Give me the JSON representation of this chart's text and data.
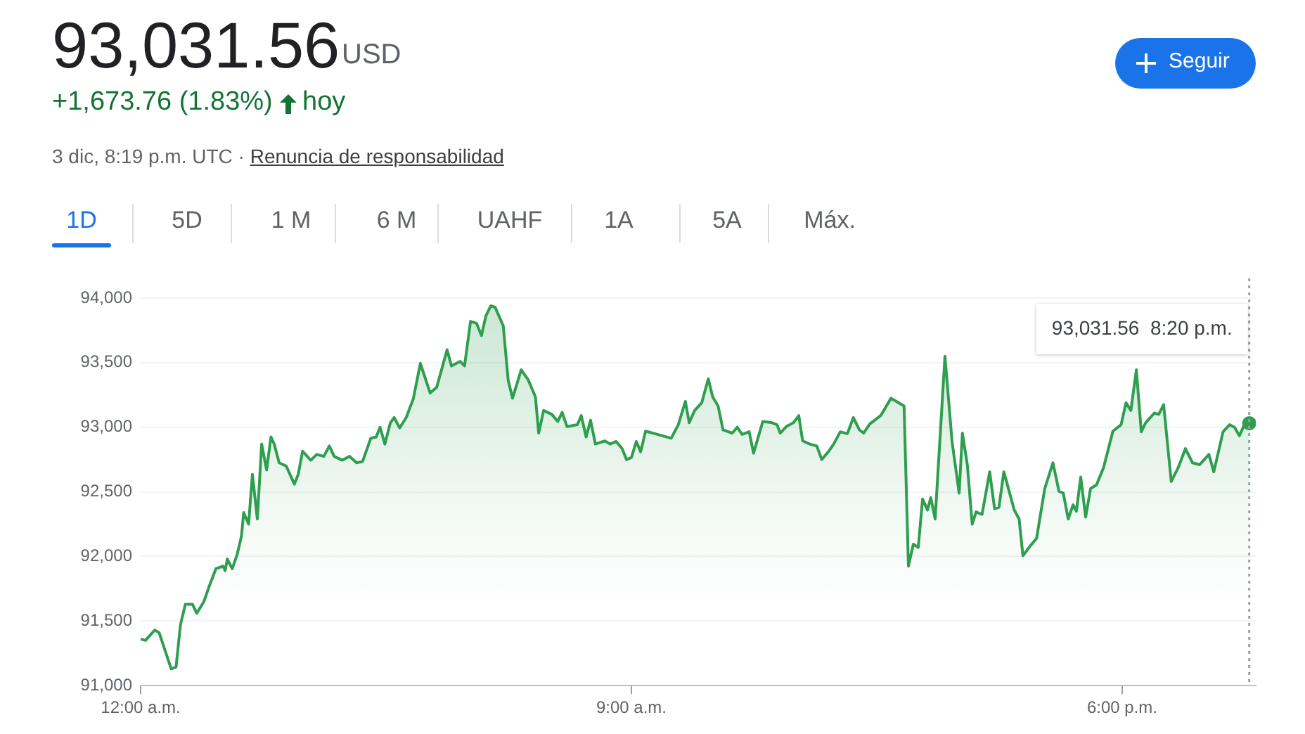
{
  "chart_data": {
    "type": "area",
    "title": "93,031.56",
    "color": "#2e9e4f",
    "annotations": [
      "USD",
      "+1,673.76 (1.83%)",
      "hoy",
      "3 dic, 8:19 p.m. UTC · ",
      "Renuncia de responsabilidad",
      "Seguir",
      "1D",
      "5D",
      "1 M",
      "6 M",
      "UAHF",
      "1A",
      "5A",
      "Máx.",
      "93,031.56  8:20 p.m."
    ],
    "x": [
      0,
      0.09,
      0.26,
      0.34,
      0.56,
      0.65,
      0.73,
      0.82,
      0.95,
      1.03,
      1.16,
      1.25,
      1.38,
      1.51,
      1.55,
      1.59,
      1.68,
      1.77,
      1.85,
      1.89,
      1.98,
      2.05,
      2.14,
      2.22,
      2.31,
      2.39,
      2.45,
      2.54,
      2.67,
      2.82,
      2.89,
      2.97,
      3.12,
      3.23,
      3.36,
      3.46,
      3.55,
      3.7,
      3.83,
      3.96,
      4.07,
      4.22,
      4.32,
      4.39,
      4.48,
      4.58,
      4.65,
      4.75,
      4.87,
      5,
      5.13,
      5.31,
      5.43,
      5.62,
      5.7,
      5.86,
      5.94,
      6.05,
      6.16,
      6.25,
      6.33,
      6.42,
      6.5,
      6.65,
      6.74,
      6.82,
      6.98,
      7.11,
      7.24,
      7.3,
      7.39,
      7.54,
      7.65,
      7.73,
      7.82,
      8.01,
      8.08,
      8.17,
      8.25,
      8.34,
      8.51,
      8.61,
      8.72,
      8.83,
      8.91,
      9,
      9.09,
      9.17,
      9.26,
      9.48,
      9.73,
      9.86,
      9.99,
      10.06,
      10.16,
      10.29,
      10.41,
      10.49,
      10.59,
      10.68,
      10.85,
      10.94,
      11.03,
      11.16,
      11.24,
      11.41,
      11.58,
      11.67,
      11.73,
      11.84,
      11.97,
      12.07,
      12.14,
      12.27,
      12.4,
      12.49,
      12.62,
      12.71,
      12.83,
      12.96,
      13.07,
      13.18,
      13.26,
      13.37,
      13.57,
      13.65,
      13.76,
      14,
      14.08,
      14.17,
      14.26,
      14.34,
      14.43,
      14.49,
      14.57,
      14.75,
      14.88,
      15.01,
      15.07,
      15.16,
      15.25,
      15.32,
      15.43,
      15.57,
      15.66,
      15.74,
      15.83,
      16.02,
      16.11,
      16.18,
      16.32,
      16.43,
      16.58,
      16.73,
      16.84,
      16.92,
      17.01,
      17.1,
      17.16,
      17.24,
      17.33,
      17.42,
      17.53,
      17.66,
      17.83,
      17.98,
      18.07,
      18.16,
      18.26,
      18.35,
      18.43,
      18.59,
      18.67,
      18.76,
      18.9,
      19.03,
      19.16,
      19.29,
      19.42,
      19.59,
      19.68,
      19.85,
      19.97,
      20.06,
      20.15,
      20.24,
      20.33
    ],
    "values": [
      91360,
      91350,
      91430,
      91410,
      91130,
      91145,
      91470,
      91630,
      91630,
      91560,
      91650,
      91760,
      91905,
      91925,
      91890,
      91980,
      91905,
      92015,
      92160,
      92340,
      92250,
      92635,
      92290,
      92870,
      92670,
      92925,
      92870,
      92725,
      92700,
      92560,
      92635,
      92815,
      92745,
      92790,
      92775,
      92855,
      92775,
      92745,
      92775,
      92725,
      92735,
      92915,
      92925,
      93000,
      92870,
      93035,
      93075,
      92995,
      93075,
      93220,
      93495,
      93265,
      93310,
      93600,
      93475,
      93510,
      93475,
      93820,
      93805,
      93710,
      93860,
      93940,
      93930,
      93785,
      93365,
      93225,
      93445,
      93365,
      93235,
      92955,
      93130,
      93100,
      93045,
      93115,
      93005,
      93020,
      93090,
      92925,
      93055,
      92870,
      92895,
      92870,
      92890,
      92835,
      92750,
      92765,
      92890,
      92810,
      92970,
      92945,
      92915,
      93020,
      93200,
      93035,
      93130,
      93190,
      93375,
      93235,
      93165,
      92980,
      92955,
      93000,
      92945,
      92965,
      92800,
      93045,
      93035,
      93020,
      92955,
      93005,
      93035,
      93090,
      92895,
      92870,
      92855,
      92750,
      92815,
      92870,
      92965,
      92950,
      93075,
      92980,
      92955,
      93025,
      93090,
      93145,
      93225,
      93165,
      91925,
      92095,
      92070,
      92445,
      92360,
      92455,
      92290,
      93550,
      92890,
      92490,
      92955,
      92710,
      92250,
      92345,
      92325,
      92655,
      92370,
      92380,
      92655,
      92360,
      92290,
      92005,
      92085,
      92140,
      92525,
      92725,
      92505,
      92490,
      92290,
      92400,
      92350,
      92615,
      92305,
      92525,
      92555,
      92690,
      92970,
      93020,
      93190,
      93130,
      93445,
      92965,
      93035,
      93110,
      93100,
      93175,
      92580,
      92690,
      92835,
      92725,
      92710,
      92790,
      92655,
      92965,
      93020,
      93000,
      92935,
      93020,
      93031.56
    ],
    "xlim": [
      0,
      20.45
    ],
    "xticks": [
      {
        "value": 0,
        "label": "12:00 a.m."
      },
      {
        "value": 9,
        "label": "9:00 a.m."
      },
      {
        "value": 18,
        "label": "6:00 p.m."
      }
    ],
    "ylim": [
      91000,
      94000
    ],
    "yticks": [
      {
        "value": 91000,
        "label": "91,000"
      },
      {
        "value": 91500,
        "label": "91,500"
      },
      {
        "value": 92000,
        "label": "92,000"
      },
      {
        "value": 92500,
        "label": "92,500"
      },
      {
        "value": 93000,
        "label": "93,000"
      },
      {
        "value": 93500,
        "label": "93,500"
      },
      {
        "value": 94000,
        "label": "94,000"
      }
    ],
    "grid": "y",
    "legend": false,
    "marker": "none",
    "line_style": "solid",
    "ref_lines": [
      {
        "axis": "x",
        "value": 20.33,
        "line_style": "dotted",
        "color": "#9aa0a6"
      }
    ]
  }
}
